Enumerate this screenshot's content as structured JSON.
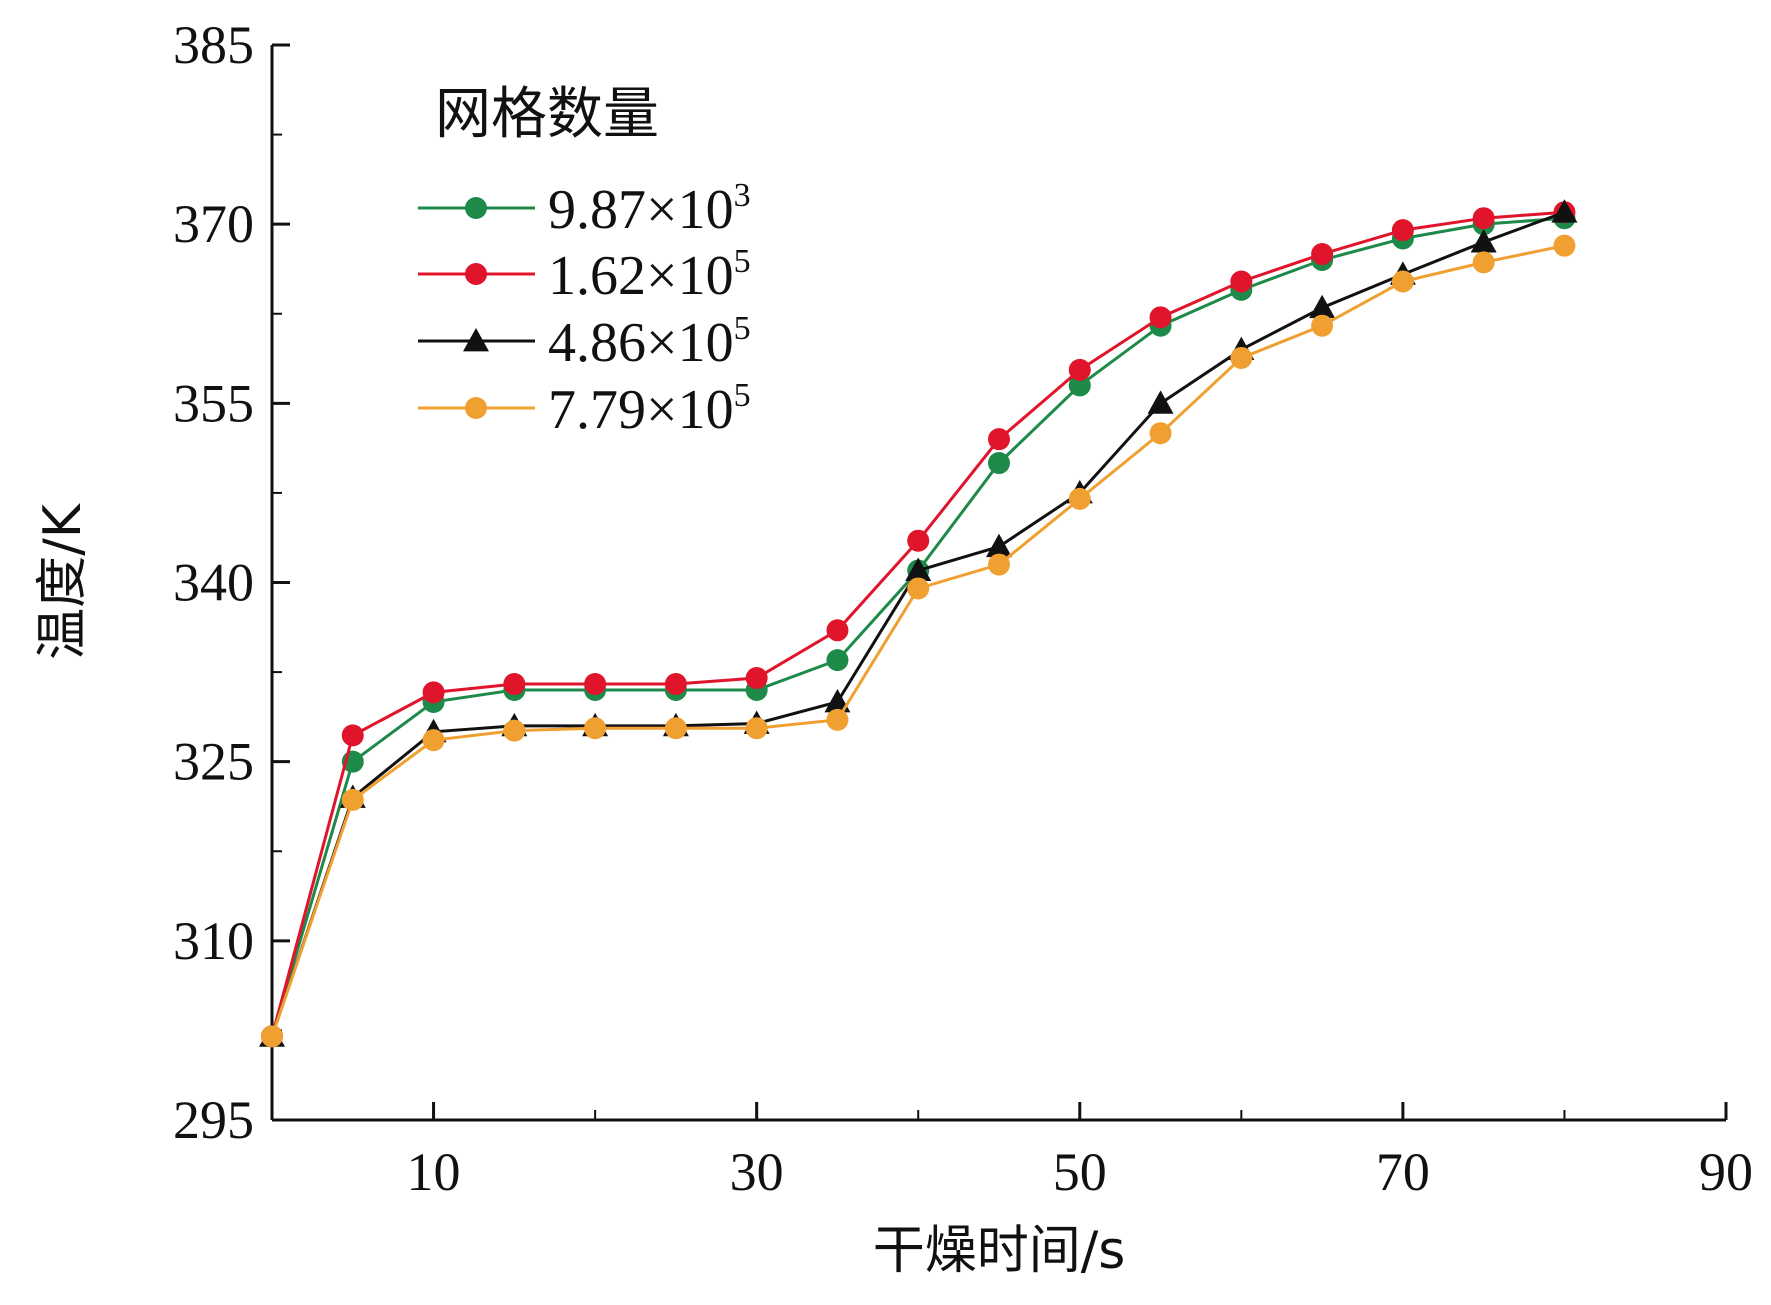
{
  "chart_data": {
    "type": "line",
    "title": "",
    "xlabel": "干燥时间/s",
    "ylabel": "温度/K",
    "xlim": [
      0,
      90
    ],
    "ylim": [
      295,
      385
    ],
    "xticks": [
      10,
      30,
      50,
      70,
      90
    ],
    "xtick_labels": [
      "10",
      "30",
      "50",
      "70",
      "90"
    ],
    "yticks": [
      295,
      310,
      325,
      340,
      355,
      370,
      385
    ],
    "ytick_labels": [
      "295",
      "310",
      "325",
      "340",
      "355",
      "370",
      "385"
    ],
    "grid": false,
    "legend": {
      "title": "网格数量",
      "placement": "top-left"
    },
    "x": [
      0,
      5,
      10,
      15,
      20,
      25,
      30,
      35,
      40,
      45,
      50,
      55,
      60,
      65,
      70,
      75,
      80
    ],
    "series": [
      {
        "name": "9.87×10³",
        "name_base": "9.87×10",
        "name_sup": "3",
        "color": "#1e8a4a",
        "marker": "circle",
        "values": [
          302,
          325,
          330,
          331,
          331,
          331,
          331,
          333.5,
          341,
          350,
          356.5,
          361.5,
          364.5,
          367,
          368.8,
          370,
          370.5
        ]
      },
      {
        "name": "1.62×10⁵",
        "name_base": "1.62×10",
        "name_sup": "5",
        "color": "#e0142a",
        "marker": "circle",
        "values": [
          302,
          327.2,
          330.8,
          331.5,
          331.5,
          331.5,
          332,
          336,
          343.5,
          352,
          357.8,
          362.2,
          365.2,
          367.5,
          369.5,
          370.5,
          371
        ]
      },
      {
        "name": "4.86×10⁵",
        "name_base": "4.86×10",
        "name_sup": "5",
        "color": "#111111",
        "marker": "triangle",
        "values": [
          302,
          322,
          327.5,
          328,
          328,
          328,
          328.2,
          330,
          341,
          343,
          347.5,
          355,
          359.5,
          363,
          365.8,
          368.5,
          371
        ]
      },
      {
        "name": "7.79×10⁵",
        "name_base": "7.79×10",
        "name_sup": "5",
        "color": "#f0a030",
        "marker": "circle",
        "values": [
          302,
          321.8,
          326.8,
          327.6,
          327.8,
          327.8,
          327.8,
          328.5,
          339.5,
          341.5,
          347,
          352.5,
          358.8,
          361.5,
          365.2,
          366.8,
          368.2
        ]
      }
    ]
  }
}
